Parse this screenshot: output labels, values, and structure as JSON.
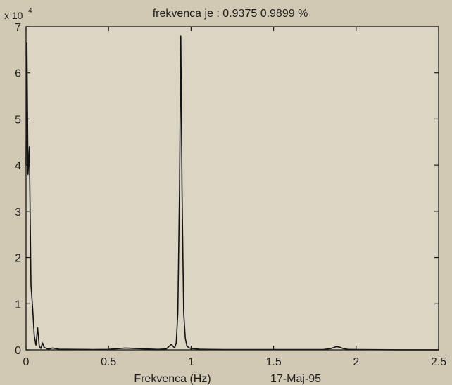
{
  "chart_data": {
    "type": "line",
    "title": "frekvenca je : 0.9375   0.9899 %",
    "xlabel": "Frekvenca (Hz)",
    "ylabel": "",
    "y_scale_label": "x 10",
    "y_scale_exponent": "4",
    "date_label": "17-Maj-95",
    "xlim": [
      0,
      2.5
    ],
    "ylim": [
      0,
      70000
    ],
    "x_ticks": [
      0,
      0.5,
      1,
      1.5,
      2,
      2.5
    ],
    "x_tick_labels": [
      "0",
      "0.5",
      "1",
      "1.5",
      "2",
      "2.5"
    ],
    "y_ticks": [
      0,
      10000,
      20000,
      30000,
      40000,
      50000,
      60000,
      70000
    ],
    "y_tick_labels": [
      "0",
      "1",
      "2",
      "3",
      "4",
      "5",
      "6",
      "7"
    ],
    "grid": false,
    "series": [
      {
        "color": "#141414",
        "x": [
          0,
          0.005,
          0.012,
          0.02,
          0.03,
          0.04,
          0.05,
          0.06,
          0.07,
          0.08,
          0.09,
          0.1,
          0.11,
          0.12,
          0.13,
          0.14,
          0.16,
          0.2,
          0.3,
          0.4,
          0.5,
          0.6,
          0.7,
          0.8,
          0.85,
          0.88,
          0.9,
          0.91,
          0.92,
          0.93,
          0.9375,
          0.945,
          0.955,
          0.965,
          0.975,
          0.99,
          1.0,
          1.05,
          1.1,
          1.2,
          1.4,
          1.6,
          1.8,
          1.85,
          1.88,
          1.9,
          1.92,
          1.95,
          2.0,
          2.1,
          2.2,
          2.3,
          2.4,
          2.5
        ],
        "y": [
          40000,
          66500,
          38000,
          44000,
          14000,
          9000,
          3000,
          1000,
          4800,
          800,
          300,
          1500,
          500,
          400,
          200,
          200,
          400,
          150,
          100,
          80,
          100,
          400,
          250,
          100,
          200,
          1200,
          400,
          1500,
          8000,
          35000,
          68000,
          35000,
          8000,
          2500,
          800,
          400,
          300,
          150,
          100,
          80,
          80,
          60,
          60,
          300,
          700,
          600,
          300,
          100,
          60,
          40,
          30,
          20,
          15,
          10
        ]
      }
    ]
  }
}
